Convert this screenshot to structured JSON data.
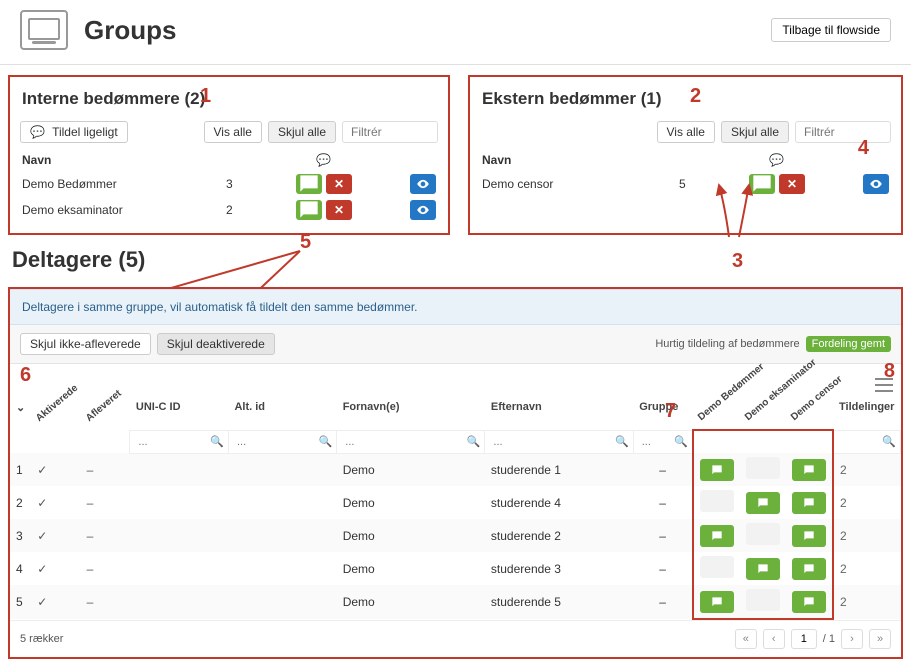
{
  "colors": {
    "accent_red": "#c0392b",
    "green": "#6bb13c",
    "blue": "#2477c4",
    "info_bg": "#e9f2f9",
    "info_text": "#2a5f8a"
  },
  "header": {
    "title": "Groups",
    "back_label": "Tilbage til flowside"
  },
  "internal": {
    "title": "Interne bedømmere (2)",
    "assign_even_label": "Tildel ligeligt",
    "show_all": "Vis alle",
    "hide_all": "Skjul alle",
    "filter_placeholder": "Filtrér",
    "col_name": "Navn",
    "rows": [
      {
        "name": "Demo Bedømmer",
        "count": "3"
      },
      {
        "name": "Demo eksaminator",
        "count": "2"
      }
    ]
  },
  "external": {
    "title": "Ekstern bedømmer (1)",
    "show_all": "Vis alle",
    "hide_all": "Skjul alle",
    "filter_placeholder": "Filtrér",
    "col_name": "Navn",
    "rows": [
      {
        "name": "Demo censor",
        "count": "5"
      }
    ]
  },
  "participants": {
    "title": "Deltagere (5)",
    "info": "Deltagere i samme gruppe, vil automatisk få tildelt den samme bedømmer.",
    "hide_not_submitted": "Skjul ikke-afleverede",
    "hide_deactivated": "Skjul deaktiverede",
    "quick_assign": "Hurtig tildeling af bedømmere",
    "saved_badge": "Fordeling gemt",
    "columns": {
      "activated": "Aktiverede",
      "submitted": "Afleveret",
      "unic": "UNI-C ID",
      "altid": "Alt. id",
      "firstname": "Fornavn(e)",
      "lastname": "Efternavn",
      "group": "Gruppe",
      "a1": "Demo Bedømmer",
      "a2": "Demo eksaminator",
      "a3": "Demo censor",
      "assignments": "Tildelinger"
    },
    "filter_dots": "...",
    "rows": [
      {
        "n": "1",
        "act": "✓",
        "sub": "–",
        "first": "Demo",
        "last": "studerende 1",
        "grp": "–",
        "a1": true,
        "a2": false,
        "a3": true,
        "cnt": "2"
      },
      {
        "n": "2",
        "act": "✓",
        "sub": "–",
        "first": "Demo",
        "last": "studerende 4",
        "grp": "–",
        "a1": false,
        "a2": true,
        "a3": true,
        "cnt": "2"
      },
      {
        "n": "3",
        "act": "✓",
        "sub": "–",
        "first": "Demo",
        "last": "studerende 2",
        "grp": "–",
        "a1": true,
        "a2": false,
        "a3": true,
        "cnt": "2"
      },
      {
        "n": "4",
        "act": "✓",
        "sub": "–",
        "first": "Demo",
        "last": "studerende 3",
        "grp": "–",
        "a1": false,
        "a2": true,
        "a3": true,
        "cnt": "2"
      },
      {
        "n": "5",
        "act": "✓",
        "sub": "–",
        "first": "Demo",
        "last": "studerende 5",
        "grp": "–",
        "a1": true,
        "a2": false,
        "a3": true,
        "cnt": "2"
      }
    ],
    "row_count_label": "5 rækker",
    "page_current": "1",
    "page_total": "/ 1"
  },
  "markers": {
    "m1": "1",
    "m2": "2",
    "m3": "3",
    "m4": "4",
    "m5": "5",
    "m6": "6",
    "m7": "7",
    "m8": "8"
  }
}
